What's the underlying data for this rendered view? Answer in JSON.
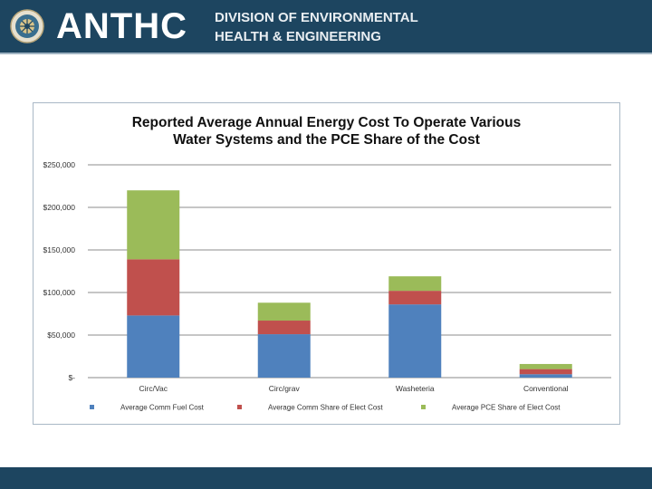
{
  "header": {
    "org": "ANTHC",
    "division_line1": "DIVISION OF ENVIRONMENTAL",
    "division_line2": "HEALTH & ENGINEERING"
  },
  "colors": {
    "header_bg": "#1d4560",
    "fuel": "#4f81bd",
    "comm_elect": "#c0504d",
    "pce_elect": "#9bbb59"
  },
  "chart_data": {
    "type": "bar",
    "stacked": true,
    "title_line1": "Reported Average Annual Energy Cost To Operate Various",
    "title_line2": "Water Systems and the PCE Share of the Cost",
    "categories": [
      "Circ/Vac",
      "Circ/grav",
      "Washeteria",
      "Conventional"
    ],
    "series": [
      {
        "name": "Average Comm Fuel Cost",
        "color": "#4f81bd",
        "values": [
          73000,
          51000,
          86000,
          4000
        ]
      },
      {
        "name": "Average Comm Share of Elect Cost",
        "color": "#c0504d",
        "values": [
          66000,
          16000,
          16000,
          6000
        ]
      },
      {
        "name": "Average PCE Share of Elect Cost",
        "color": "#9bbb59",
        "values": [
          81000,
          21000,
          17000,
          6000
        ]
      }
    ],
    "ylim": [
      0,
      250000
    ],
    "yticks": [
      0,
      50000,
      100000,
      150000,
      200000,
      250000
    ],
    "ytick_labels": [
      "$-",
      "$50,000",
      "$100,000",
      "$150,000",
      "$200,000",
      "$250,000"
    ],
    "grid": true,
    "legend_position": "bottom"
  }
}
